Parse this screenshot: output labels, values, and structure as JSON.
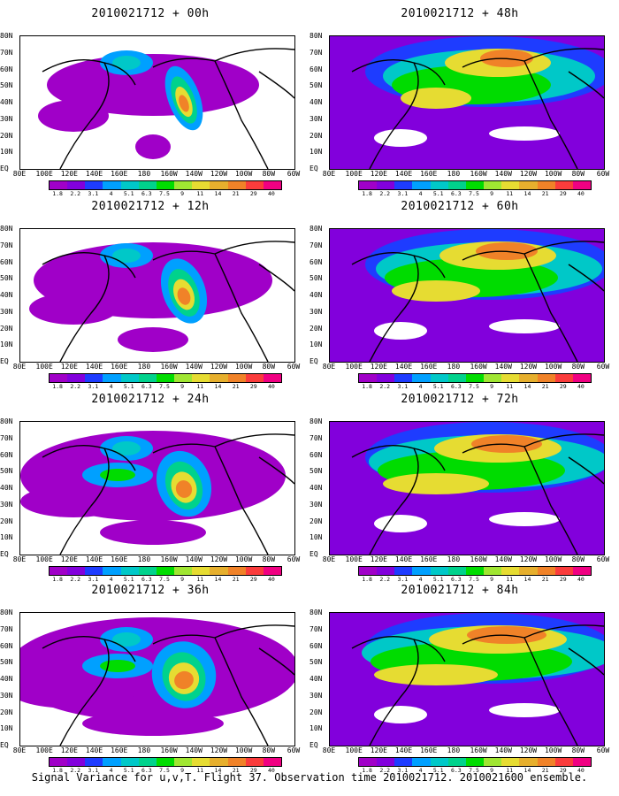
{
  "caption": "Signal Variance for u,v,T. Flight 37. Observation time 2010021712. 2010021600 ensemble.",
  "lat_labels": [
    "80N",
    "70N",
    "60N",
    "50N",
    "40N",
    "30N",
    "20N",
    "10N",
    "EQ"
  ],
  "lon_labels": [
    "80E",
    "100E",
    "120E",
    "140E",
    "160E",
    "180",
    "160W",
    "140W",
    "120W",
    "100W",
    "80W",
    "60W"
  ],
  "colorbar": {
    "labels": [
      "1.8",
      "2.2",
      "3.1",
      "4",
      "5.1",
      "6.3",
      "7.5",
      "9",
      "11",
      "14",
      "21",
      "29",
      "40"
    ],
    "colors": [
      "#a000c8",
      "#8200dc",
      "#1e3cff",
      "#00a0ff",
      "#00c8c8",
      "#00d28c",
      "#00dc00",
      "#a0e632",
      "#e6dc32",
      "#e6af2d",
      "#f08228",
      "#fa3c3c",
      "#f00082"
    ]
  },
  "panels": [
    {
      "title": "2010021712 + 00h"
    },
    {
      "title": "2010021712 + 48h"
    },
    {
      "title": "2010021712 + 12h"
    },
    {
      "title": "2010021712 + 60h"
    },
    {
      "title": "2010021712 + 24h"
    },
    {
      "title": "2010021712 + 72h"
    },
    {
      "title": "2010021712 + 36h"
    },
    {
      "title": "2010021712 + 84h"
    }
  ]
}
